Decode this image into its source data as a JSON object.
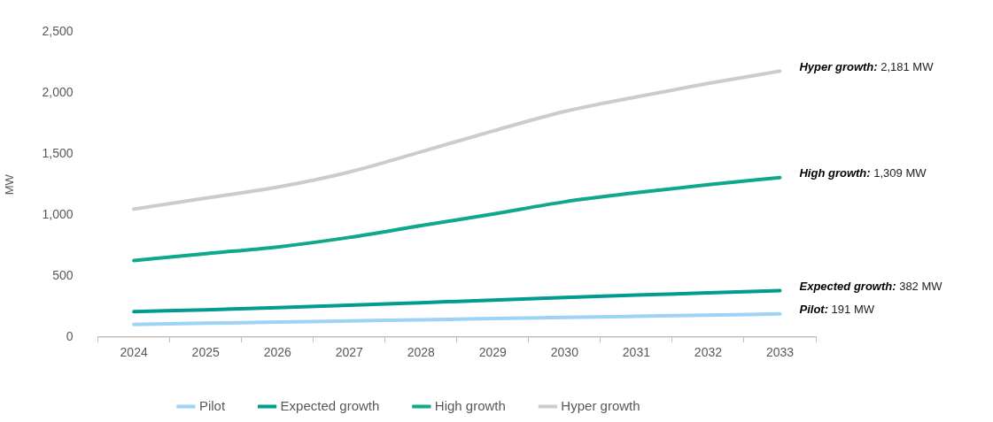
{
  "chart_data": {
    "type": "line",
    "ylabel": "MW",
    "categories": [
      "2024",
      "2025",
      "2026",
      "2027",
      "2028",
      "2029",
      "2030",
      "2031",
      "2032",
      "2033"
    ],
    "series": [
      {
        "name": "Pilot",
        "color": "#9dd3f5",
        "values": [
          105,
          115,
          124,
          134,
          143,
          153,
          162,
          172,
          181,
          191
        ]
      },
      {
        "name": "Expected growth",
        "color": "#009c8f",
        "values": [
          210,
          225,
          243,
          262,
          283,
          305,
          326,
          345,
          364,
          382
        ]
      },
      {
        "name": "High growth",
        "color": "#10a88a",
        "values": [
          628,
          685,
          740,
          818,
          915,
          1010,
          1110,
          1185,
          1250,
          1309
        ]
      },
      {
        "name": "Hyper growth",
        "color": "#cccccc",
        "values": [
          1050,
          1140,
          1230,
          1354,
          1520,
          1690,
          1850,
          1970,
          2080,
          2181
        ]
      }
    ],
    "ylim": [
      0,
      2500
    ],
    "yticks": [
      {
        "value": 0,
        "label": "0"
      },
      {
        "value": 500,
        "label": "500"
      },
      {
        "value": 1000,
        "label": "1,000"
      },
      {
        "value": 1500,
        "label": "1,500"
      },
      {
        "value": 2000,
        "label": "2,000"
      },
      {
        "value": 2500,
        "label": "2,500"
      }
    ],
    "grid": false,
    "legend": "bottom",
    "marker": "none",
    "line_style": "solid",
    "annotations": [
      {
        "text": "Hyper growth: 2,181 MW",
        "x": "2033",
        "y": 2181
      },
      {
        "text": "High growth: 1,309 MW",
        "x": "2033",
        "y": 1309
      },
      {
        "text": "Expected growth: 382 MW",
        "x": "2033",
        "y": 382
      },
      {
        "text": "Pilot: 191 MW",
        "x": "2033",
        "y": 191
      }
    ]
  }
}
